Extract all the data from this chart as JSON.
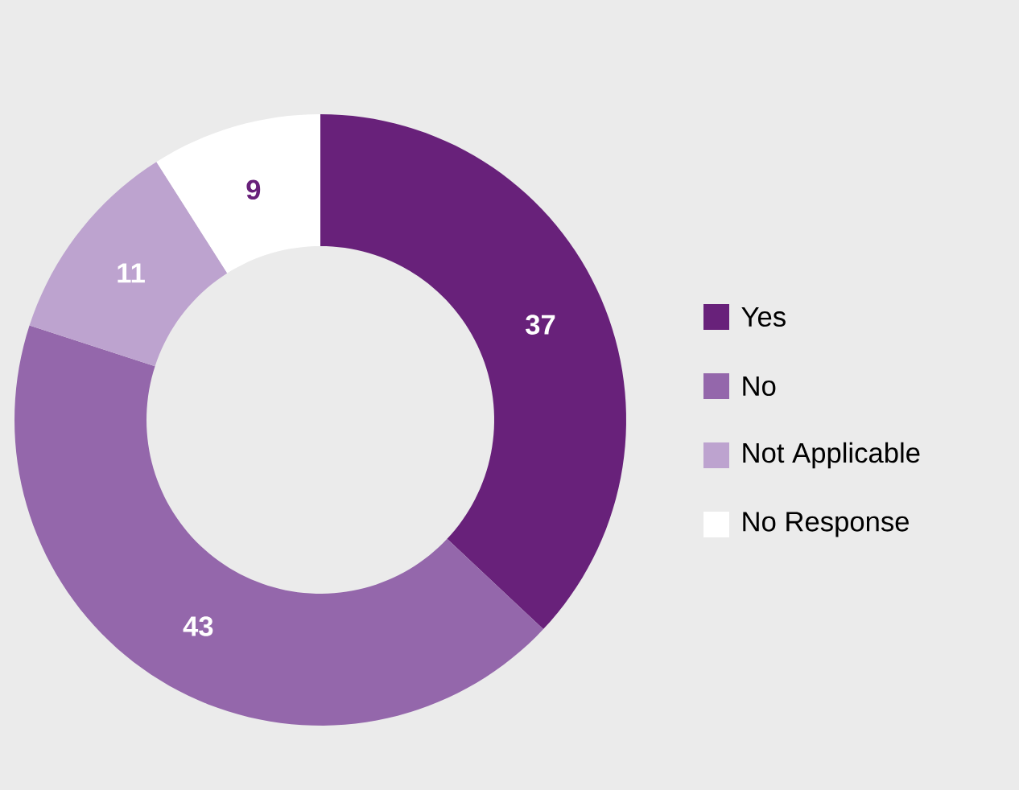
{
  "chart_data": {
    "type": "donut",
    "categories": [
      "Yes",
      "No",
      "Not Applicable",
      "No Response"
    ],
    "values": [
      37,
      43,
      11,
      9
    ],
    "colors": [
      "#68217a",
      "#9467ab",
      "#bda3cf",
      "#ffffff"
    ],
    "data_labels": true,
    "legend": "right"
  }
}
